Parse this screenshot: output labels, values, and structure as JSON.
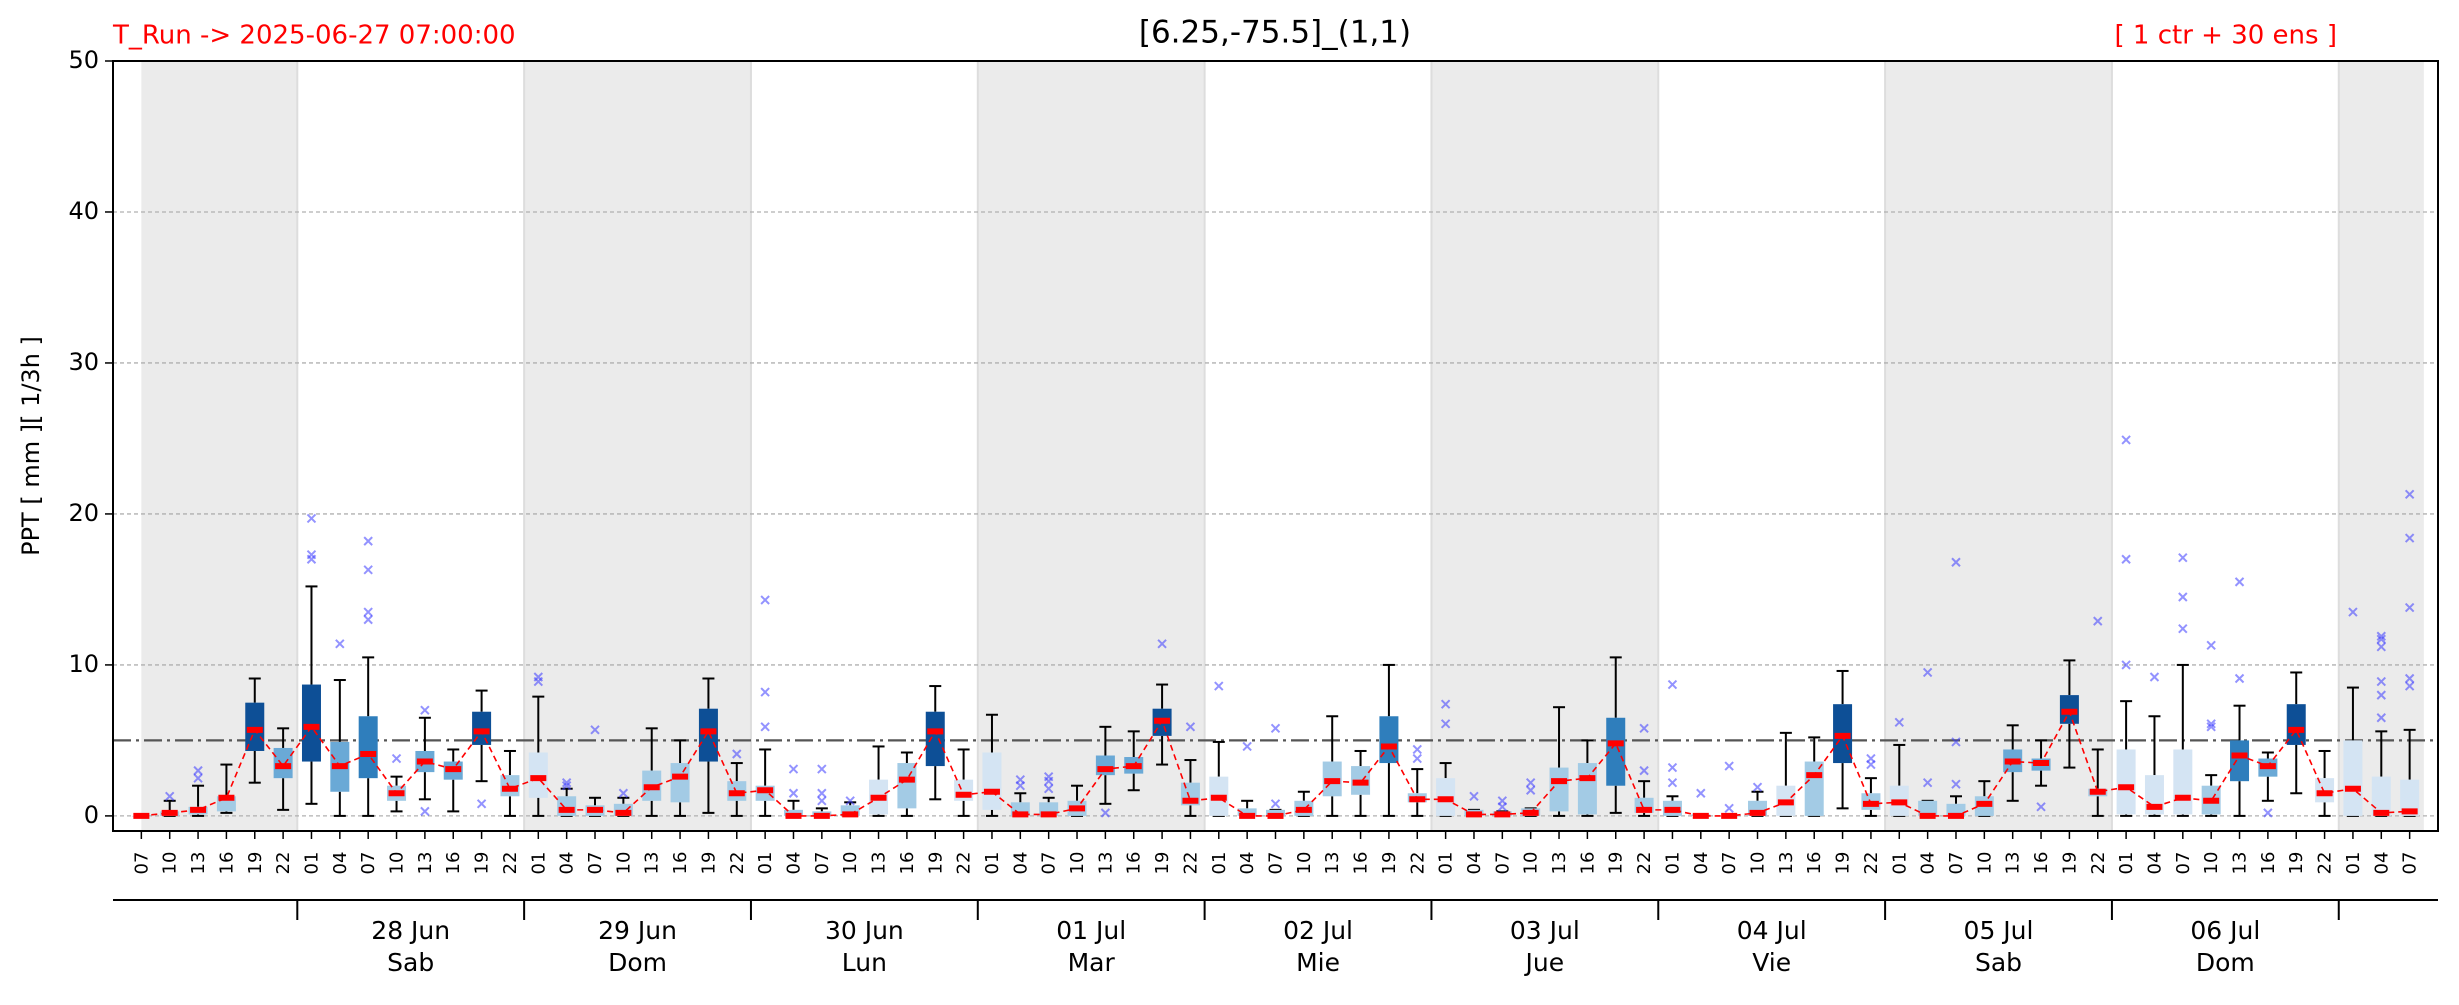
{
  "chart_data": {
    "type": "box",
    "title": "[6.25,-75.5]_(1,1)",
    "run_label": "T_Run -> 2025-06-27  07:00:00",
    "members_label": "[ 1 ctr + 30 ens ]",
    "y_label": "PPT  [ mm ][ 1/3h ]",
    "categories": [
      "07",
      "10",
      "13",
      "16",
      "19",
      "22",
      "01",
      "04",
      "07",
      "10",
      "13",
      "16",
      "19",
      "22",
      "01",
      "04",
      "07",
      "10",
      "13",
      "16",
      "19",
      "22",
      "01",
      "04",
      "07",
      "10",
      "13",
      "16",
      "19",
      "22",
      "01",
      "04",
      "07",
      "10",
      "13",
      "16",
      "19",
      "22",
      "01",
      "04",
      "07",
      "10",
      "13",
      "16",
      "19",
      "22",
      "01",
      "04",
      "07",
      "10",
      "13",
      "16",
      "19",
      "22",
      "01",
      "04",
      "07",
      "10",
      "13",
      "16",
      "19",
      "22",
      "01",
      "04",
      "07",
      "10",
      "13",
      "16",
      "19",
      "22",
      "01",
      "04",
      "07",
      "10",
      "13",
      "16",
      "19",
      "22",
      "01",
      "04",
      "07"
    ],
    "day_groups": [
      {
        "date": "28 Jun",
        "weekday": "Sab"
      },
      {
        "date": "29 Jun",
        "weekday": "Dom"
      },
      {
        "date": "30 Jun",
        "weekday": "Lun"
      },
      {
        "date": "01 Jul",
        "weekday": "Mar"
      },
      {
        "date": "02 Jul",
        "weekday": "Mie"
      },
      {
        "date": "03 Jul",
        "weekday": "Jue"
      },
      {
        "date": "04 Jul",
        "weekday": "Vie"
      },
      {
        "date": "05 Jul",
        "weekday": "Sab"
      },
      {
        "date": "06 Jul",
        "weekday": "Dom"
      }
    ],
    "ylim": [
      -1,
      50
    ],
    "yticks": [
      0,
      10,
      20,
      30,
      40,
      50
    ],
    "grid": true,
    "threshold": 5,
    "threshold_color": "#555555",
    "median_color": "#ff0000",
    "outlier_color": "#3b3bff",
    "shade_color": "#ebebeb",
    "boxes": {
      "whisker_low": [
        0,
        0,
        0,
        0.2,
        2.2,
        0.4,
        0.8,
        0,
        0,
        0.3,
        1.1,
        0.3,
        2.3,
        0,
        0,
        0,
        0,
        0,
        0,
        0,
        0.2,
        0,
        0,
        0,
        0,
        0,
        0,
        0,
        1.1,
        0,
        0,
        0,
        0,
        0,
        0.8,
        1.7,
        3.4,
        0,
        0,
        0,
        0,
        0,
        0,
        0,
        0,
        0,
        0,
        0,
        0,
        0,
        0,
        0,
        0.2,
        0,
        0,
        0,
        0,
        0,
        0,
        0,
        0.5,
        0,
        0,
        0,
        0,
        0,
        1,
        2,
        3.2,
        0,
        0,
        0,
        0,
        0,
        0,
        1,
        1.5,
        0,
        0,
        0,
        0
      ],
      "q1": [
        0,
        0,
        0.1,
        0.3,
        4.3,
        2.5,
        3.6,
        1.6,
        2.5,
        1,
        2.9,
        2.4,
        4.7,
        1.3,
        1.2,
        0,
        0,
        0,
        1,
        0.9,
        3.6,
        1,
        1,
        0,
        0,
        0,
        0.1,
        0.5,
        3.3,
        1,
        0.4,
        0,
        0,
        0,
        2.7,
        2.8,
        5.3,
        0.7,
        0,
        0,
        0,
        0,
        1.3,
        1.4,
        3.5,
        0.9,
        0,
        0,
        0,
        0,
        0.3,
        0.1,
        2,
        0.2,
        0,
        0,
        0,
        0,
        0,
        0,
        3.5,
        0.4,
        0,
        0,
        0,
        0,
        2.9,
        3,
        6.1,
        1.3,
        0.1,
        0.1,
        0.1,
        0.1,
        2.3,
        2.6,
        4.7,
        0.9,
        0,
        0,
        0
      ],
      "median": [
        0,
        0.2,
        0.4,
        1.2,
        5.7,
        3.3,
        5.9,
        3.3,
        4.1,
        1.5,
        3.6,
        3.1,
        5.6,
        1.8,
        2.5,
        0.4,
        0.4,
        0.2,
        1.9,
        2.6,
        5.6,
        1.5,
        1.7,
        0,
        0,
        0.1,
        1.2,
        2.4,
        5.6,
        1.4,
        1.6,
        0.1,
        0.1,
        0.5,
        3.1,
        3.3,
        6.3,
        1,
        1.2,
        0,
        0,
        0.4,
        2.3,
        2.2,
        4.6,
        1.1,
        1.1,
        0.1,
        0.1,
        0.2,
        2.3,
        2.5,
        4.8,
        0.4,
        0.4,
        0,
        0,
        0.2,
        0.9,
        2.7,
        5.3,
        0.8,
        0.9,
        0,
        0,
        0.8,
        3.6,
        3.5,
        6.9,
        1.6,
        1.9,
        0.6,
        1.2,
        1,
        4,
        3.3,
        5.7,
        1.5,
        1.8,
        0.2,
        0.3
      ],
      "q3": [
        0,
        0.3,
        0.6,
        1.3,
        7.5,
        4.5,
        8.7,
        4.9,
        6.6,
        2,
        4.3,
        3.6,
        6.9,
        2.7,
        4.2,
        1.3,
        0.7,
        0.8,
        3,
        3.5,
        7.1,
        2.3,
        2,
        0.4,
        0.3,
        0.7,
        2.4,
        3.5,
        6.9,
        2.4,
        4.2,
        0.9,
        0.9,
        1,
        4,
        3.9,
        7.1,
        2.2,
        2.6,
        0.5,
        0.4,
        1,
        3.6,
        3.3,
        6.6,
        1.5,
        2.5,
        0.4,
        0.3,
        0.5,
        3.2,
        3.5,
        6.5,
        1.2,
        1,
        0.1,
        0,
        1,
        2,
        3.6,
        7.4,
        1.5,
        2,
        1,
        0.8,
        1.3,
        4.4,
        3.8,
        8,
        1.8,
        4.4,
        2.7,
        4.4,
        2,
        5,
        3.8,
        7.4,
        2.5,
        5,
        2.6,
        2.4
      ],
      "whisker_high": [
        0,
        1,
        2,
        3.4,
        9.1,
        5.8,
        15.2,
        9,
        10.5,
        2.6,
        6.5,
        4.4,
        8.3,
        4.3,
        7.9,
        1.8,
        1.2,
        1.2,
        5.8,
        5,
        9.1,
        3.5,
        4.4,
        1,
        0.5,
        0.9,
        4.6,
        4.2,
        8.6,
        4.4,
        6.7,
        1.5,
        1.2,
        2,
        5.9,
        5.6,
        8.7,
        3.7,
        4.9,
        1,
        0.4,
        1.6,
        6.6,
        4.3,
        10,
        3.1,
        3.5,
        0.4,
        0.3,
        0.5,
        7.2,
        5,
        10.5,
        2.3,
        1.3,
        0.1,
        0,
        1.6,
        5.5,
        5.2,
        9.6,
        2.5,
        4.7,
        1,
        1.3,
        2.3,
        6,
        5,
        10.3,
        4.4,
        7.6,
        6.6,
        10,
        2.7,
        7.3,
        4.2,
        9.5,
        4.3,
        8.5,
        5.6,
        5.7
      ],
      "outliers": [
        [],
        [
          1.3
        ],
        [
          2.5,
          3
        ],
        [],
        [],
        [],
        [
          17,
          17.3,
          19.7
        ],
        [
          11.4
        ],
        [
          13,
          13.5,
          16.3,
          18.2
        ],
        [
          3.8
        ],
        [
          0.3,
          7
        ],
        [],
        [
          0.8
        ],
        [],
        [
          8.9,
          9.2
        ],
        [
          2,
          2.2
        ],
        [
          5.7
        ],
        [
          1.5
        ],
        [],
        [],
        [],
        [
          4.1
        ],
        [
          5.9,
          8.2,
          14.3
        ],
        [
          1.5,
          3.1
        ],
        [
          1,
          1.5,
          3.1
        ],
        [
          1
        ],
        [],
        [],
        [],
        [],
        [],
        [
          2,
          2.4
        ],
        [
          1.8,
          2.3,
          2.6
        ],
        [],
        [
          0.2
        ],
        [],
        [
          11.4
        ],
        [
          5.9
        ],
        [
          8.6
        ],
        [
          4.6
        ],
        [
          0.8,
          5.8
        ],
        [],
        [],
        [],
        [],
        [
          3.8,
          4.4
        ],
        [
          6.1,
          7.4
        ],
        [
          1.3
        ],
        [
          0.6,
          1
        ],
        [
          1.7,
          2.2
        ],
        [],
        [],
        [],
        [
          3,
          5.8
        ],
        [
          2.2,
          3.2,
          8.7
        ],
        [
          1.5
        ],
        [
          0.5,
          3.3
        ],
        [
          1.9
        ],
        [],
        [],
        [],
        [
          3.4,
          3.8
        ],
        [
          6.2
        ],
        [
          2.2,
          9.5
        ],
        [
          2.1,
          4.9,
          16.8
        ],
        [],
        [],
        [
          0.6
        ],
        [],
        [
          12.9
        ],
        [
          10,
          17,
          24.9
        ],
        [
          9.2
        ],
        [
          12.4,
          14.5,
          17.1
        ],
        [
          5.9,
          6.1,
          11.3
        ],
        [
          9.1,
          15.5
        ],
        [
          0.2
        ],
        [],
        [],
        [
          13.5
        ],
        [
          6.5,
          8,
          8.9,
          11.2,
          11.7,
          11.9
        ],
        [
          8.6,
          9.1,
          13.8,
          18.4,
          21.3
        ]
      ],
      "colors": [
        "#a3cbe5",
        "#a3cbe5",
        "#a3cbe5",
        "#a3cbe5",
        "#0d4f96",
        "#6aa9d6",
        "#0d4f96",
        "#6aa9d6",
        "#2f7ebc",
        "#a3cbe5",
        "#6aa9d6",
        "#6aa9d6",
        "#0d4f96",
        "#a3cbe5",
        "#d4e4f3",
        "#a3cbe5",
        "#a3cbe5",
        "#a3cbe5",
        "#a3cbe5",
        "#a3cbe5",
        "#0d4f96",
        "#a3cbe5",
        "#a3cbe5",
        "#a3cbe5",
        "#a3cbe5",
        "#a3cbe5",
        "#d4e4f3",
        "#a3cbe5",
        "#0d4f96",
        "#d4e4f3",
        "#d4e4f3",
        "#a3cbe5",
        "#a3cbe5",
        "#a3cbe5",
        "#6aa9d6",
        "#6aa9d6",
        "#0d4f96",
        "#a3cbe5",
        "#d4e4f3",
        "#a3cbe5",
        "#a3cbe5",
        "#a3cbe5",
        "#a3cbe5",
        "#a3cbe5",
        "#2f7ebc",
        "#a3cbe5",
        "#d4e4f3",
        "#a3cbe5",
        "#a3cbe5",
        "#a3cbe5",
        "#a3cbe5",
        "#a3cbe5",
        "#2f7ebc",
        "#a3cbe5",
        "#a3cbe5",
        "#a3cbe5",
        "#a3cbe5",
        "#a3cbe5",
        "#d4e4f3",
        "#a3cbe5",
        "#0d4f96",
        "#a3cbe5",
        "#d4e4f3",
        "#a3cbe5",
        "#a3cbe5",
        "#a3cbe5",
        "#6aa9d6",
        "#6aa9d6",
        "#0d4f96",
        "#a3cbe5",
        "#d4e4f3",
        "#d4e4f3",
        "#d4e4f3",
        "#a3cbe5",
        "#2f7ebc",
        "#6aa9d6",
        "#0d4f96",
        "#d4e4f3",
        "#d4e4f3",
        "#d4e4f3",
        "#d4e4f3"
      ]
    }
  }
}
